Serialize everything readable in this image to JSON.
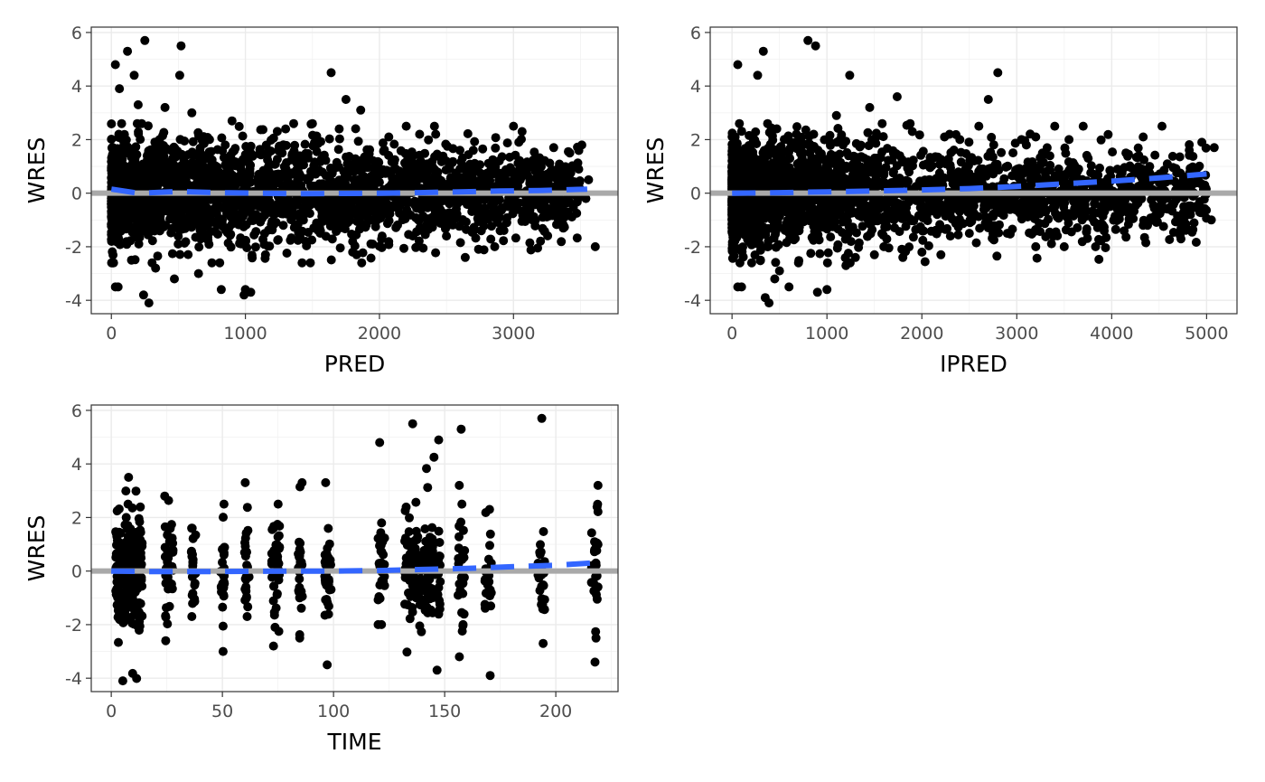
{
  "colors": {
    "points": "#000000",
    "smooth": "#3366FF",
    "reference_line": "#A9A9A9",
    "panel_background": "#FFFFFF",
    "grid": "#EBEBEB"
  },
  "chart_data": [
    {
      "type": "scatter",
      "xlabel": "PRED",
      "ylabel": "WRES",
      "xlim": [
        -150,
        3780
      ],
      "ylim": [
        -4.5,
        6.2
      ],
      "x_ticks": [
        0,
        1000,
        2000,
        3000
      ],
      "y_ticks": [
        -4,
        -2,
        0,
        2,
        4,
        6
      ],
      "grid": true,
      "reference_line": {
        "y": 0
      },
      "smooth": {
        "x": [
          0,
          200,
          500,
          800,
          1100,
          1400,
          1700,
          2000,
          2300,
          2600,
          2900,
          3200,
          3550
        ],
        "y": [
          0.15,
          0.0,
          0.06,
          0.02,
          0.0,
          -0.02,
          -0.01,
          0.0,
          0.02,
          0.05,
          0.08,
          0.1,
          0.15
        ]
      },
      "points": {
        "x": [
          30,
          60,
          120,
          170,
          250,
          520,
          510,
          1640,
          1750,
          1860,
          2070,
          2200,
          2410,
          2420,
          3000,
          3040,
          3060,
          3300,
          3420,
          3510,
          3560,
          3540,
          3610,
          3400,
          3150,
          2900,
          2950,
          2860,
          2760,
          2640,
          2500,
          2020,
          1800,
          1830,
          1040,
          1000,
          990,
          820,
          650,
          470,
          280,
          240,
          50,
          30,
          400,
          200,
          600,
          900,
          1300,
          1500,
          1700,
          2300,
          2600,
          2700,
          150,
          330,
          750,
          1150,
          1450,
          1950,
          2250
        ],
        "y": [
          4.8,
          3.9,
          5.3,
          4.4,
          5.7,
          5.5,
          4.4,
          4.5,
          3.5,
          3.1,
          2.1,
          2.5,
          2.5,
          2.2,
          2.5,
          1.9,
          0.6,
          1.7,
          1.5,
          1.8,
          0.5,
          -0.2,
          -2.0,
          -0.7,
          -1.0,
          -1.4,
          -1.1,
          -2.0,
          -1.4,
          -2.4,
          -1.6,
          -1.6,
          -2.2,
          -2.3,
          -3.7,
          -3.6,
          -3.8,
          -3.6,
          -3.0,
          -3.2,
          -4.1,
          -3.8,
          -3.5,
          -3.5,
          3.2,
          3.3,
          3.0,
          2.7,
          2.4,
          2.6,
          2.4,
          2.2,
          1.6,
          1.6,
          -2.5,
          -2.8,
          -2.6,
          -2.3,
          -1.8,
          -1.9,
          -1.6
        ]
      }
    },
    {
      "type": "scatter",
      "xlabel": "IPRED",
      "ylabel": "WRES",
      "xlim": [
        -230,
        5320
      ],
      "ylim": [
        -4.5,
        6.2
      ],
      "x_ticks": [
        0,
        1000,
        2000,
        3000,
        4000,
        5000
      ],
      "y_ticks": [
        -4,
        -2,
        0,
        2,
        4,
        6
      ],
      "grid": true,
      "reference_line": {
        "y": 0
      },
      "smooth": {
        "x": [
          0,
          500,
          1000,
          1500,
          2000,
          2500,
          3000,
          3500,
          4000,
          4500,
          5000
        ],
        "y": [
          0.0,
          0.02,
          0.05,
          0.08,
          0.12,
          0.17,
          0.25,
          0.35,
          0.45,
          0.57,
          0.72
        ]
      },
      "points": {
        "x": [
          60,
          270,
          330,
          800,
          880,
          1240,
          1450,
          1740,
          2800,
          2700,
          2600,
          3050,
          3200,
          3400,
          3550,
          3700,
          4150,
          4400,
          4530,
          4950,
          5080,
          5050,
          4980,
          3830,
          3500,
          3200,
          2750,
          2500,
          2200,
          1800,
          1500,
          1200,
          900,
          600,
          450,
          390,
          350,
          60,
          100,
          300,
          500,
          700,
          1000,
          1300,
          1600,
          2000,
          2300,
          2900,
          3300,
          3600,
          1100,
          1900,
          2400
        ],
        "y": [
          4.8,
          4.4,
          5.3,
          5.7,
          5.5,
          4.4,
          3.2,
          3.6,
          4.5,
          3.5,
          2.5,
          2.0,
          2.1,
          2.5,
          2.0,
          2.5,
          1.5,
          1.0,
          2.5,
          1.9,
          1.7,
          -1.0,
          0.3,
          -2.0,
          -2.0,
          -2.0,
          -1.5,
          -1.5,
          -2.3,
          -2.4,
          -2.3,
          -2.7,
          -3.7,
          -3.5,
          -3.2,
          -4.1,
          -3.9,
          -3.5,
          -3.5,
          -2.5,
          -2.9,
          -2.6,
          -3.6,
          -2.4,
          -2.0,
          -2.2,
          -1.6,
          -1.5,
          -0.6,
          -0.7,
          2.9,
          2.3,
          2.0
        ]
      }
    },
    {
      "type": "scatter",
      "xlabel": "TIME",
      "ylabel": "WRES",
      "xlim": [
        -9,
        228
      ],
      "ylim": [
        -4.5,
        6.2
      ],
      "x_ticks": [
        0,
        50,
        100,
        150,
        200
      ],
      "y_ticks": [
        -4,
        -2,
        0,
        2,
        4,
        6
      ],
      "grid": true,
      "reference_line": {
        "y": 0
      },
      "smooth": {
        "x": [
          0,
          20,
          40,
          60,
          80,
          100,
          120,
          140,
          160,
          180,
          200,
          220
        ],
        "y": [
          0.0,
          -0.02,
          -0.02,
          -0.01,
          0.0,
          0.0,
          0.02,
          0.06,
          0.1,
          0.16,
          0.22,
          0.32
        ]
      },
      "clusters": [
        {
          "x": 2,
          "width": 12,
          "ymin": -4.1,
          "ymax": 3.5,
          "n": 240
        },
        {
          "x": 24,
          "width": 4,
          "ymin": -2.6,
          "ymax": 2.8,
          "n": 45
        },
        {
          "x": 36,
          "width": 2,
          "ymin": -1.7,
          "ymax": 1.6,
          "n": 25
        },
        {
          "x": 49,
          "width": 2,
          "ymin": -3.0,
          "ymax": 2.5,
          "n": 35
        },
        {
          "x": 60,
          "width": 2,
          "ymin": -1.7,
          "ymax": 3.3,
          "n": 25
        },
        {
          "x": 72,
          "width": 4,
          "ymin": -2.8,
          "ymax": 2.5,
          "n": 40
        },
        {
          "x": 84,
          "width": 2,
          "ymin": -2.5,
          "ymax": 3.3,
          "n": 30
        },
        {
          "x": 96,
          "width": 3,
          "ymin": -3.5,
          "ymax": 3.3,
          "n": 30
        },
        {
          "x": 120,
          "width": 3,
          "ymin": -2.0,
          "ymax": 4.8,
          "n": 35
        },
        {
          "x": 132,
          "width": 16,
          "ymin": -3.7,
          "ymax": 5.5,
          "n": 170
        },
        {
          "x": 156,
          "width": 3,
          "ymin": -3.2,
          "ymax": 5.3,
          "n": 30
        },
        {
          "x": 168,
          "width": 3,
          "ymin": -3.9,
          "ymax": 2.3,
          "n": 30
        },
        {
          "x": 192,
          "width": 3,
          "ymin": -2.7,
          "ymax": 5.7,
          "n": 30
        },
        {
          "x": 216,
          "width": 3,
          "ymin": -3.4,
          "ymax": 3.2,
          "n": 30
        }
      ]
    }
  ]
}
